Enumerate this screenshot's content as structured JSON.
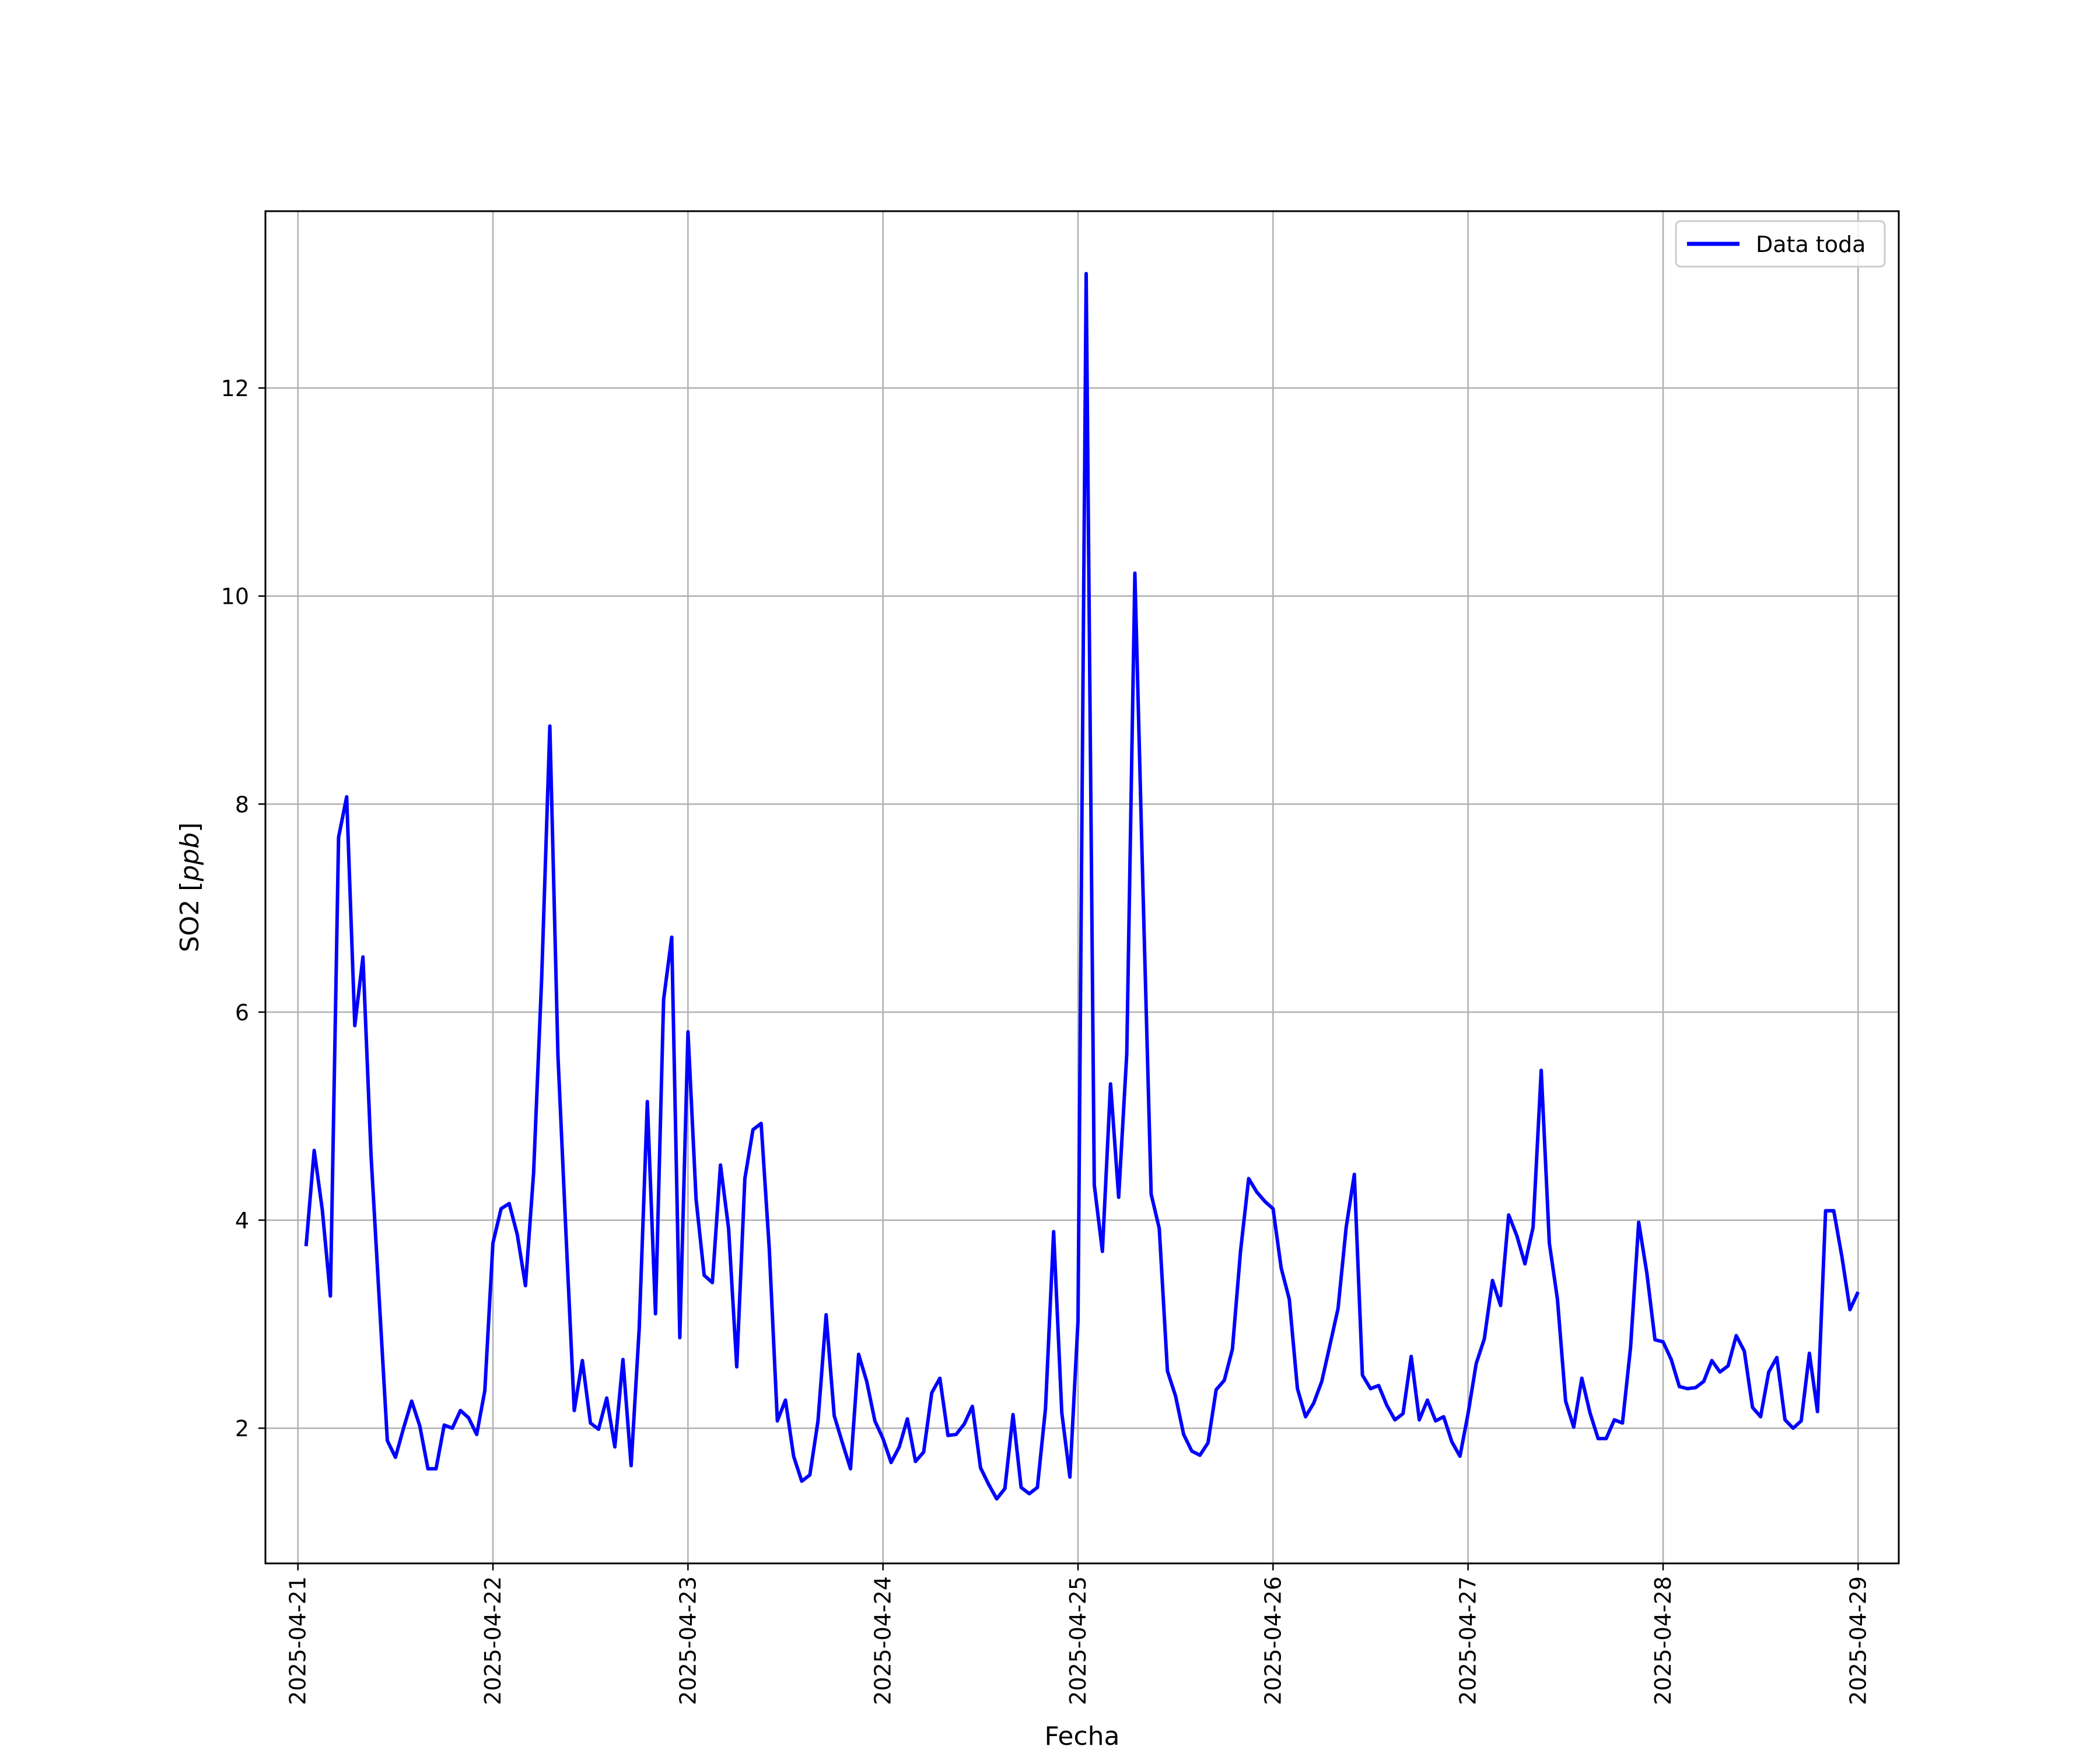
{
  "chart_data": {
    "type": "line",
    "title": "",
    "xlabel": "Fecha",
    "ylabel_text": "SO2 [",
    "ylabel_unit": "ppb",
    "ylabel_close": "]",
    "x_is_date": true,
    "x_range": [
      "2025-04-20T20:00",
      "2025-04-29T05:00"
    ],
    "ylim": [
      0.7,
      13.7
    ],
    "x_ticks": [
      "2025-04-21",
      "2025-04-22",
      "2025-04-23",
      "2025-04-24",
      "2025-04-25",
      "2025-04-26",
      "2025-04-27",
      "2025-04-28",
      "2025-04-29"
    ],
    "y_ticks": [
      2,
      4,
      6,
      8,
      10,
      12
    ],
    "y_tick_labels": [
      "2",
      "4",
      "6",
      "8",
      "10",
      "12"
    ],
    "grid": true,
    "legend_position": "top-right",
    "series": [
      {
        "name": "Data toda",
        "color": "#0000ff",
        "x": [
          "2025-04-21T01:00",
          "2025-04-21T02:00",
          "2025-04-21T03:00",
          "2025-04-21T04:00",
          "2025-04-21T05:00",
          "2025-04-21T06:00",
          "2025-04-21T07:00",
          "2025-04-21T08:00",
          "2025-04-21T09:00",
          "2025-04-21T10:00",
          "2025-04-21T11:00",
          "2025-04-21T12:00",
          "2025-04-21T13:00",
          "2025-04-21T14:00",
          "2025-04-21T15:00",
          "2025-04-21T16:00",
          "2025-04-21T17:00",
          "2025-04-21T18:00",
          "2025-04-21T19:00",
          "2025-04-21T20:00",
          "2025-04-21T21:00",
          "2025-04-21T22:00",
          "2025-04-21T23:00",
          "2025-04-22T00:00",
          "2025-04-22T01:00",
          "2025-04-22T02:00",
          "2025-04-22T03:00",
          "2025-04-22T04:00",
          "2025-04-22T05:00",
          "2025-04-22T06:00",
          "2025-04-22T07:00",
          "2025-04-22T08:00",
          "2025-04-22T09:00",
          "2025-04-22T10:00",
          "2025-04-22T11:00",
          "2025-04-22T12:00",
          "2025-04-22T13:00",
          "2025-04-22T14:00",
          "2025-04-22T15:00",
          "2025-04-22T16:00",
          "2025-04-22T17:00",
          "2025-04-22T18:00",
          "2025-04-22T19:00",
          "2025-04-22T20:00",
          "2025-04-22T21:00",
          "2025-04-22T22:00",
          "2025-04-22T23:00",
          "2025-04-23T00:00",
          "2025-04-23T01:00",
          "2025-04-23T02:00",
          "2025-04-23T03:00",
          "2025-04-23T04:00",
          "2025-04-23T05:00",
          "2025-04-23T06:00",
          "2025-04-23T07:00",
          "2025-04-23T08:00",
          "2025-04-23T09:00",
          "2025-04-23T10:00",
          "2025-04-23T11:00",
          "2025-04-23T12:00",
          "2025-04-23T13:00",
          "2025-04-23T14:00",
          "2025-04-23T15:00",
          "2025-04-23T16:00",
          "2025-04-23T17:00",
          "2025-04-23T18:00",
          "2025-04-23T19:00",
          "2025-04-23T20:00",
          "2025-04-23T21:00",
          "2025-04-23T22:00",
          "2025-04-23T23:00",
          "2025-04-24T00:00",
          "2025-04-24T01:00",
          "2025-04-24T02:00",
          "2025-04-24T03:00",
          "2025-04-24T04:00",
          "2025-04-24T05:00",
          "2025-04-24T06:00",
          "2025-04-24T07:00",
          "2025-04-24T08:00",
          "2025-04-24T09:00",
          "2025-04-24T10:00",
          "2025-04-24T11:00",
          "2025-04-24T12:00",
          "2025-04-24T13:00",
          "2025-04-24T14:00",
          "2025-04-24T15:00",
          "2025-04-24T16:00",
          "2025-04-24T17:00",
          "2025-04-24T18:00",
          "2025-04-24T19:00",
          "2025-04-24T20:00",
          "2025-04-24T21:00",
          "2025-04-24T22:00",
          "2025-04-24T23:00",
          "2025-04-25T00:00",
          "2025-04-25T01:00",
          "2025-04-25T02:00",
          "2025-04-25T03:00",
          "2025-04-25T04:00",
          "2025-04-25T05:00",
          "2025-04-25T06:00",
          "2025-04-25T07:00",
          "2025-04-25T08:00",
          "2025-04-25T09:00",
          "2025-04-25T10:00",
          "2025-04-25T11:00",
          "2025-04-25T12:00",
          "2025-04-25T13:00",
          "2025-04-25T14:00",
          "2025-04-25T15:00",
          "2025-04-25T16:00",
          "2025-04-25T17:00",
          "2025-04-25T18:00",
          "2025-04-25T19:00",
          "2025-04-25T20:00",
          "2025-04-25T21:00",
          "2025-04-25T22:00",
          "2025-04-25T23:00",
          "2025-04-26T00:00",
          "2025-04-26T01:00",
          "2025-04-26T02:00",
          "2025-04-26T03:00",
          "2025-04-26T04:00",
          "2025-04-26T05:00",
          "2025-04-26T06:00",
          "2025-04-26T07:00",
          "2025-04-26T08:00",
          "2025-04-26T09:00",
          "2025-04-26T10:00",
          "2025-04-26T11:00",
          "2025-04-26T12:00",
          "2025-04-26T13:00",
          "2025-04-26T14:00",
          "2025-04-26T15:00",
          "2025-04-26T16:00",
          "2025-04-26T17:00",
          "2025-04-26T18:00",
          "2025-04-26T19:00",
          "2025-04-26T20:00",
          "2025-04-26T21:00",
          "2025-04-26T22:00",
          "2025-04-26T23:00",
          "2025-04-27T00:00",
          "2025-04-27T01:00",
          "2025-04-27T02:00",
          "2025-04-27T03:00",
          "2025-04-27T04:00",
          "2025-04-27T05:00",
          "2025-04-27T06:00",
          "2025-04-27T07:00",
          "2025-04-27T08:00",
          "2025-04-27T09:00",
          "2025-04-27T10:00",
          "2025-04-27T11:00",
          "2025-04-27T12:00",
          "2025-04-27T13:00",
          "2025-04-27T14:00",
          "2025-04-27T15:00",
          "2025-04-27T16:00",
          "2025-04-27T17:00",
          "2025-04-27T18:00",
          "2025-04-27T19:00",
          "2025-04-27T20:00",
          "2025-04-27T21:00",
          "2025-04-27T22:00",
          "2025-04-27T23:00",
          "2025-04-28T00:00",
          "2025-04-28T01:00",
          "2025-04-28T02:00",
          "2025-04-28T03:00",
          "2025-04-28T04:00",
          "2025-04-28T05:00",
          "2025-04-28T06:00",
          "2025-04-28T07:00",
          "2025-04-28T08:00",
          "2025-04-28T09:00",
          "2025-04-28T10:00",
          "2025-04-28T11:00",
          "2025-04-28T12:00",
          "2025-04-28T13:00",
          "2025-04-28T14:00",
          "2025-04-28T15:00",
          "2025-04-28T16:00",
          "2025-04-28T17:00",
          "2025-04-28T18:00",
          "2025-04-28T19:00",
          "2025-04-28T20:00",
          "2025-04-28T21:00",
          "2025-04-28T22:00",
          "2025-04-28T23:00",
          "2025-04-29T00:00"
        ],
        "y": [
          3.75,
          4.67,
          4.1,
          3.27,
          7.68,
          8.07,
          5.87,
          6.53,
          4.62,
          3.25,
          1.88,
          1.72,
          2.0,
          2.26,
          2.02,
          1.61,
          1.61,
          2.03,
          2.0,
          2.17,
          2.1,
          1.94,
          2.36,
          3.78,
          4.11,
          4.16,
          3.86,
          3.37,
          4.45,
          6.33,
          8.75,
          5.58,
          3.85,
          2.17,
          2.65,
          2.05,
          1.99,
          2.29,
          1.82,
          2.66,
          1.64,
          2.96,
          5.14,
          3.1,
          6.12,
          6.72,
          2.87,
          5.81,
          4.2,
          3.47,
          3.4,
          4.53,
          3.92,
          2.59,
          4.4,
          4.87,
          4.93,
          3.73,
          2.07,
          2.27,
          1.73,
          1.49,
          1.55,
          2.07,
          3.09,
          2.12,
          1.86,
          1.61,
          2.71,
          2.45,
          2.07,
          1.9,
          1.67,
          1.82,
          2.09,
          1.68,
          1.77,
          2.34,
          2.48,
          1.93,
          1.94,
          2.04,
          2.21,
          1.62,
          1.46,
          1.32,
          1.42,
          2.13,
          1.43,
          1.37,
          1.43,
          2.19,
          3.89,
          2.15,
          1.53,
          3.03,
          13.1,
          4.34,
          3.7,
          5.31,
          4.22,
          5.6,
          10.22,
          7.15,
          4.25,
          3.92,
          2.55,
          2.31,
          1.94,
          1.78,
          1.74,
          1.86,
          2.37,
          2.46,
          2.76,
          3.7,
          4.4,
          4.27,
          4.18,
          4.11,
          3.54,
          3.24,
          2.38,
          2.11,
          2.24,
          2.45,
          2.8,
          3.15,
          3.93,
          4.44,
          2.51,
          2.38,
          2.41,
          2.22,
          2.08,
          2.14,
          2.69,
          2.08,
          2.27,
          2.07,
          2.11,
          1.87,
          1.73,
          2.14,
          2.62,
          2.86,
          3.42,
          3.18,
          4.05,
          3.85,
          3.58,
          3.93,
          5.44,
          3.78,
          3.24,
          2.26,
          2.01,
          2.48,
          2.15,
          1.9,
          1.9,
          2.08,
          2.05,
          2.78,
          3.98,
          3.49,
          2.85,
          2.83,
          2.66,
          2.4,
          2.38,
          2.39,
          2.45,
          2.65,
          2.54,
          2.6,
          2.89,
          2.74,
          2.2,
          2.11,
          2.54,
          2.68,
          2.08,
          2.0,
          2.07,
          2.72,
          2.16,
          4.09,
          4.09,
          3.65,
          3.14,
          3.31
        ]
      }
    ]
  }
}
